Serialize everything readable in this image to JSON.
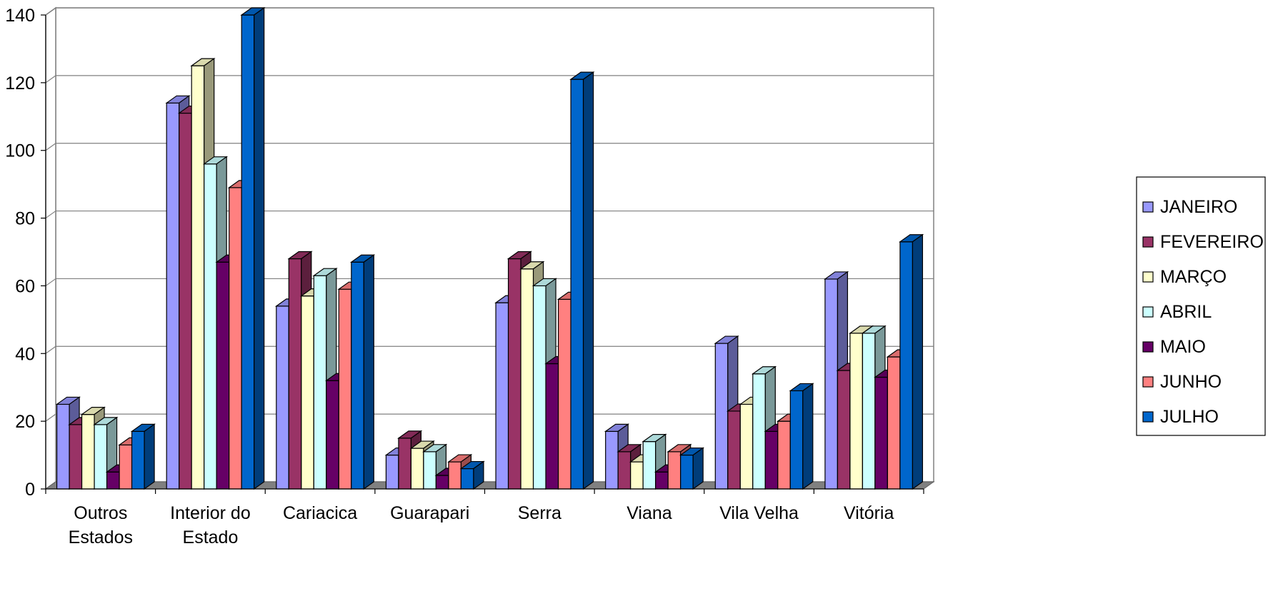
{
  "chart_data": {
    "type": "bar",
    "title": "",
    "xlabel": "",
    "ylabel": "",
    "ylim": [
      0,
      140
    ],
    "yticks": [
      0,
      20,
      40,
      60,
      80,
      100,
      120,
      140
    ],
    "grid": true,
    "legend_position": "right",
    "style": "3d-clustered-column",
    "categories": [
      [
        "Outros",
        "Estados"
      ],
      [
        "Interior do",
        "Estado"
      ],
      [
        "Cariacica"
      ],
      [
        "Guarapari"
      ],
      [
        "Serra"
      ],
      [
        "Viana"
      ],
      [
        "Vila Velha"
      ],
      [
        "Vitória"
      ]
    ],
    "series": [
      {
        "name": "JANEIRO",
        "color": "#9999FF",
        "values": [
          25,
          114,
          54,
          10,
          55,
          17,
          43,
          62
        ]
      },
      {
        "name": "FEVEREIRO",
        "color": "#993366",
        "values": [
          19,
          111,
          68,
          15,
          68,
          11,
          23,
          35
        ]
      },
      {
        "name": "MARÇO",
        "color": "#FFFFCC",
        "values": [
          22,
          125,
          57,
          12,
          65,
          8,
          25,
          46
        ]
      },
      {
        "name": "ABRIL",
        "color": "#CCFFFF",
        "values": [
          19,
          96,
          63,
          11,
          60,
          14,
          34,
          46
        ]
      },
      {
        "name": "MAIO",
        "color": "#660066",
        "values": [
          5,
          67,
          32,
          4,
          37,
          5,
          17,
          33
        ]
      },
      {
        "name": "JUNHO",
        "color": "#FF8080",
        "values": [
          13,
          89,
          59,
          8,
          56,
          11,
          20,
          39
        ]
      },
      {
        "name": "JULHO",
        "color": "#0066CC",
        "values": [
          17,
          140,
          67,
          6,
          121,
          10,
          29,
          73
        ]
      }
    ]
  }
}
